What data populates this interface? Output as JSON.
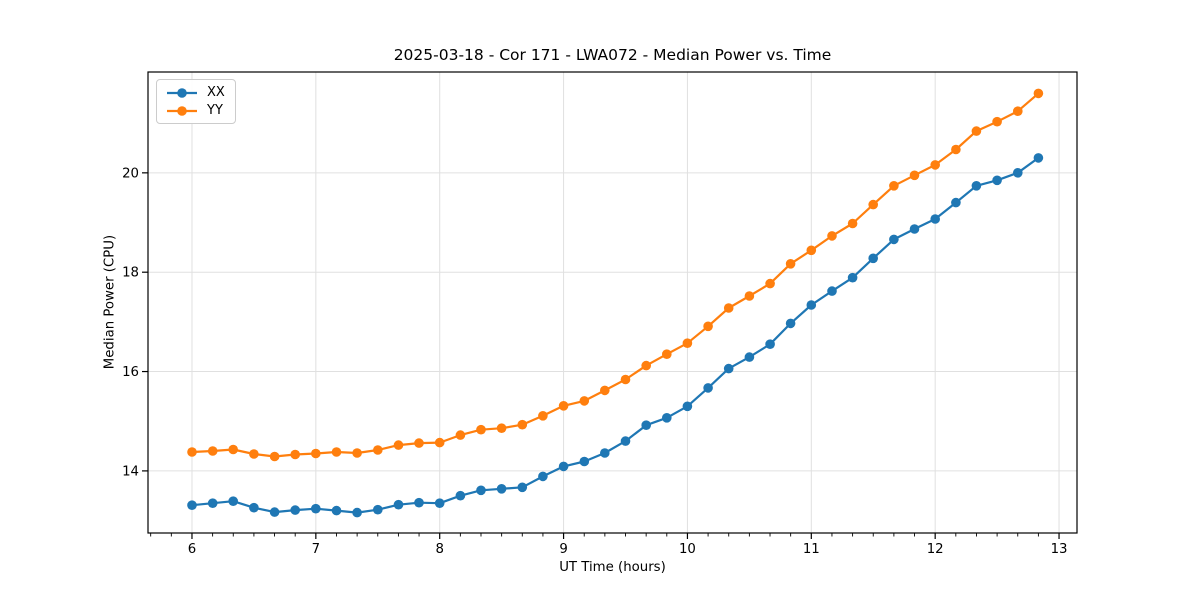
{
  "chart_data": {
    "type": "line",
    "title": "2025-03-18 - Cor 171 - LWA072 - Median Power vs. Time",
    "xlabel": "UT Time (hours)",
    "ylabel": "Median Power (CPU)",
    "xlim": [
      5.645,
      13.145
    ],
    "ylim": [
      12.75,
      22.03
    ],
    "x_major_ticks": [
      6,
      7,
      8,
      9,
      10,
      11,
      12,
      13
    ],
    "x_minor_tick_step_hours": 0.16667,
    "y_major_ticks": [
      14,
      16,
      18,
      20
    ],
    "grid": true,
    "grid_color": "#e0e0e0",
    "axis_color": "#000000",
    "legend_position": "upper-left",
    "x": [
      6.0,
      6.167,
      6.333,
      6.5,
      6.667,
      6.833,
      7.0,
      7.167,
      7.333,
      7.5,
      7.667,
      7.833,
      8.0,
      8.167,
      8.333,
      8.5,
      8.667,
      8.833,
      9.0,
      9.167,
      9.333,
      9.5,
      9.667,
      9.833,
      10.0,
      10.167,
      10.333,
      10.5,
      10.667,
      10.833,
      11.0,
      11.167,
      11.333,
      11.5,
      11.667,
      11.833,
      12.0,
      12.167,
      12.333,
      12.5,
      12.667,
      12.833
    ],
    "series": [
      {
        "name": "XX",
        "color": "#1f77b4",
        "values": [
          13.31,
          13.35,
          13.39,
          13.26,
          13.17,
          13.21,
          13.24,
          13.2,
          13.16,
          13.22,
          13.32,
          13.36,
          13.35,
          13.5,
          13.61,
          13.64,
          13.67,
          13.89,
          14.09,
          14.19,
          14.36,
          14.6,
          14.92,
          15.07,
          15.3,
          15.67,
          16.06,
          16.29,
          16.55,
          16.97,
          17.34,
          17.62,
          17.89,
          18.28,
          18.66,
          18.87,
          19.07,
          19.4,
          19.74,
          19.85,
          20.0,
          20.3
        ]
      },
      {
        "name": "YY",
        "color": "#ff7f0e",
        "values": [
          14.38,
          14.4,
          14.43,
          14.34,
          14.29,
          14.33,
          14.35,
          14.38,
          14.36,
          14.42,
          14.52,
          14.56,
          14.57,
          14.72,
          14.83,
          14.86,
          14.93,
          15.11,
          15.31,
          15.41,
          15.62,
          15.84,
          16.12,
          16.35,
          16.57,
          16.91,
          17.28,
          17.52,
          17.77,
          18.17,
          18.44,
          18.73,
          18.98,
          19.36,
          19.74,
          19.95,
          20.16,
          20.47,
          20.84,
          21.03,
          21.24,
          21.6
        ]
      }
    ]
  }
}
